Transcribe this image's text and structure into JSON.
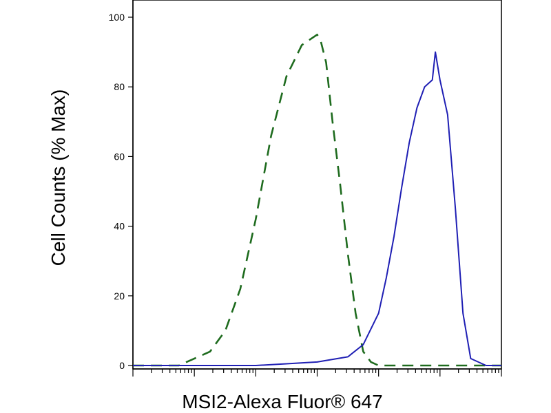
{
  "chart_data": {
    "type": "line",
    "xlabel": "MSI2-Alexa Fluor® 647",
    "ylabel": "Cell Counts (% Max)",
    "x_scale": "log",
    "xlim": [
      1,
      1000000
    ],
    "ylim": [
      0,
      100
    ],
    "y_ticks": [
      0,
      20,
      40,
      60,
      80,
      100
    ],
    "y_tick_labels": [
      "0",
      "20",
      "40",
      "60",
      "80",
      "100"
    ],
    "grid": false,
    "legend": "none",
    "series": [
      {
        "style": "dashed",
        "color": "#1e6b1e",
        "x": [
          1.0,
          1.8,
          3.2,
          5.6,
          10,
          18,
          32,
          56,
          100,
          178,
          316,
          562,
          1000,
          1150,
          1400,
          1780,
          2370,
          3160,
          4220,
          5620,
          7500,
          10000,
          13300,
          17800,
          23700,
          31600,
          56200,
          100000,
          1000000
        ],
        "values": [
          0,
          0,
          0,
          0,
          2,
          4,
          10,
          22,
          42,
          66,
          83,
          92,
          95,
          93,
          87,
          70,
          52,
          32,
          15,
          4,
          1,
          0,
          0,
          0,
          0,
          0,
          0,
          0,
          0
        ]
      },
      {
        "style": "solid",
        "color": "#1f1fb4",
        "x": [
          1.0,
          100,
          316,
          1000,
          3160,
          5620,
          10000,
          13300,
          17800,
          23700,
          31600,
          42200,
          56200,
          75000,
          84100,
          100000,
          133000,
          178000,
          237000,
          316000,
          562000,
          1000000
        ],
        "values": [
          0,
          0,
          0.5,
          1,
          2.5,
          6,
          15,
          25,
          37,
          51,
          64,
          74,
          80,
          82,
          90,
          82,
          72,
          45,
          15,
          2,
          0,
          0
        ]
      }
    ]
  }
}
